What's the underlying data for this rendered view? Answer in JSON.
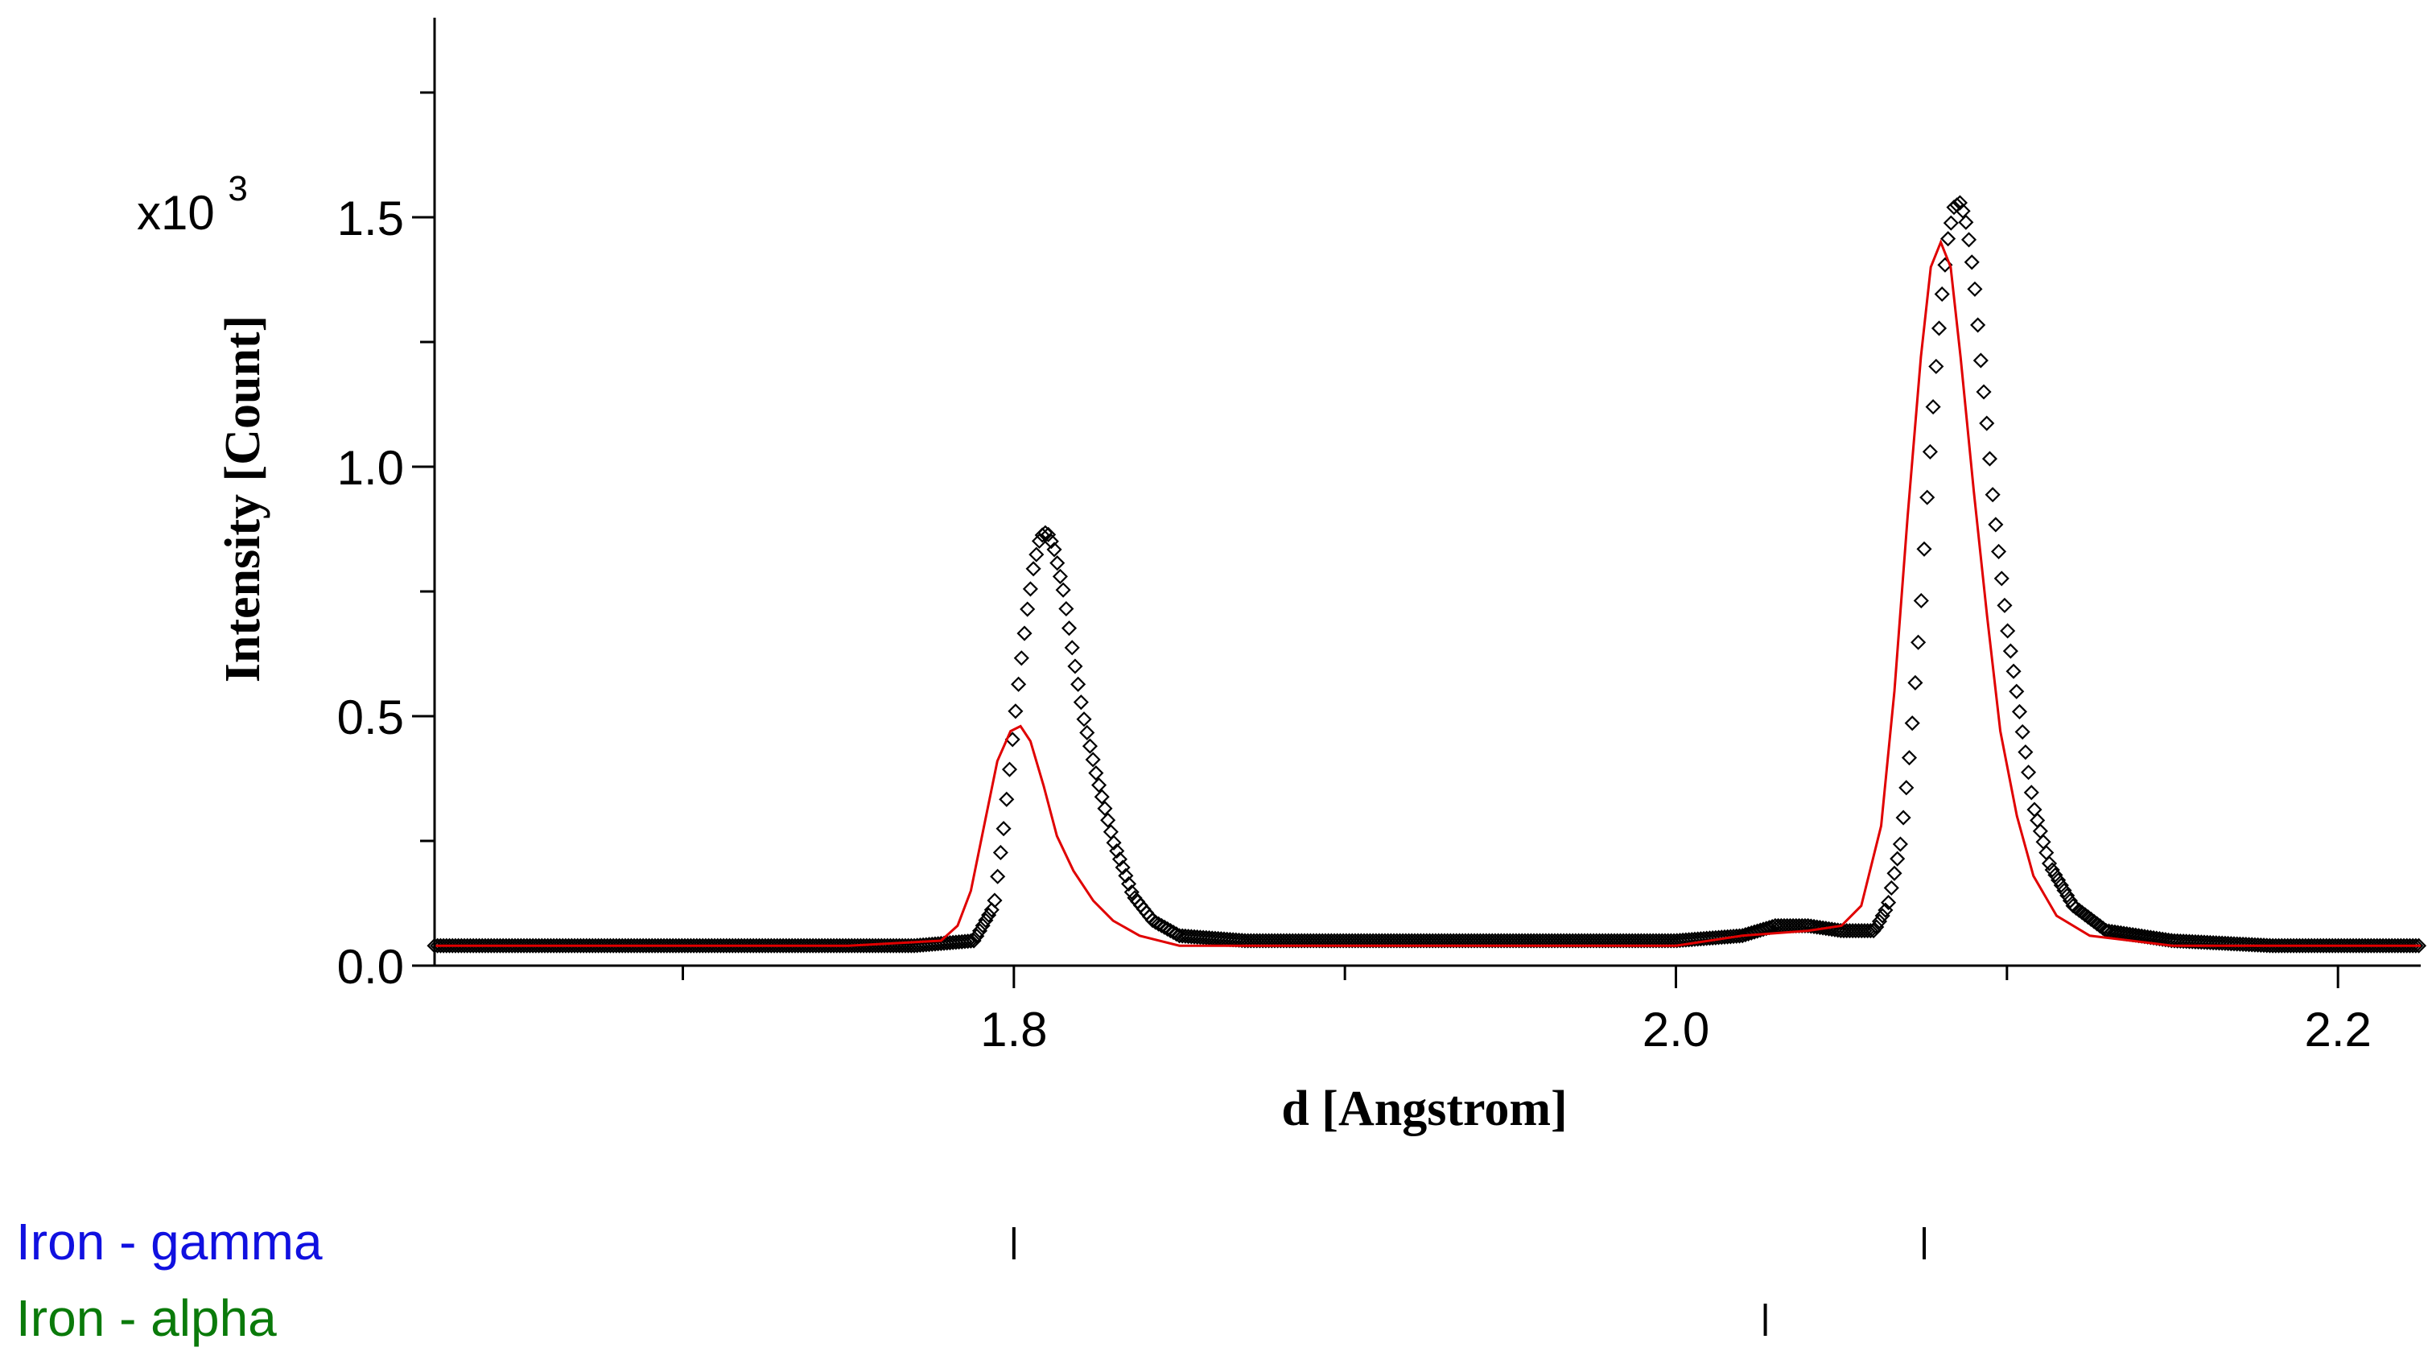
{
  "chart_data": {
    "type": "scatter",
    "xlabel": "d [Angstrom]",
    "ylabel": "Intensity [Count]",
    "y_multiplier": "x10",
    "y_multiplier_exp": "3",
    "xlim": [
      1.625,
      2.225
    ],
    "ylim": [
      0,
      1.9
    ],
    "x_ticks_major": [
      "1.8",
      "2.0",
      "2.2"
    ],
    "y_ticks_major": [
      "0.0",
      "0.5",
      "1.0",
      "1.5"
    ],
    "grid": false,
    "series": [
      {
        "kind": "observed",
        "marker": "diamond",
        "color": "#000000",
        "points": [
          [
            1.625,
            0.04
          ],
          [
            1.66,
            0.04
          ],
          [
            1.7,
            0.04
          ],
          [
            1.74,
            0.04
          ],
          [
            1.77,
            0.04
          ],
          [
            1.788,
            0.05
          ],
          [
            1.794,
            0.12
          ],
          [
            1.797,
            0.28
          ],
          [
            1.8,
            0.48
          ],
          [
            1.802,
            0.6
          ],
          [
            1.804,
            0.71
          ],
          [
            1.806,
            0.8
          ],
          [
            1.808,
            0.86
          ],
          [
            1.81,
            0.87
          ],
          [
            1.812,
            0.84
          ],
          [
            1.815,
            0.75
          ],
          [
            1.818,
            0.62
          ],
          [
            1.821,
            0.5
          ],
          [
            1.825,
            0.38
          ],
          [
            1.83,
            0.25
          ],
          [
            1.836,
            0.14
          ],
          [
            1.842,
            0.09
          ],
          [
            1.85,
            0.06
          ],
          [
            1.87,
            0.05
          ],
          [
            1.9,
            0.05
          ],
          [
            1.95,
            0.05
          ],
          [
            2.0,
            0.05
          ],
          [
            2.02,
            0.06
          ],
          [
            2.03,
            0.08
          ],
          [
            2.04,
            0.08
          ],
          [
            2.05,
            0.07
          ],
          [
            2.06,
            0.07
          ],
          [
            2.064,
            0.12
          ],
          [
            2.068,
            0.25
          ],
          [
            2.071,
            0.45
          ],
          [
            2.074,
            0.72
          ],
          [
            2.076,
            0.95
          ],
          [
            2.078,
            1.15
          ],
          [
            2.08,
            1.32
          ],
          [
            2.082,
            1.45
          ],
          [
            2.084,
            1.52
          ],
          [
            2.086,
            1.53
          ],
          [
            2.088,
            1.48
          ],
          [
            2.09,
            1.38
          ],
          [
            2.092,
            1.22
          ],
          [
            2.094,
            1.08
          ],
          [
            2.096,
            0.92
          ],
          [
            2.098,
            0.8
          ],
          [
            2.1,
            0.68
          ],
          [
            2.104,
            0.5
          ],
          [
            2.108,
            0.32
          ],
          [
            2.113,
            0.2
          ],
          [
            2.12,
            0.12
          ],
          [
            2.13,
            0.07
          ],
          [
            2.15,
            0.05
          ],
          [
            2.18,
            0.04
          ],
          [
            2.225,
            0.04
          ]
        ]
      },
      {
        "kind": "calculated",
        "color": "#e00000",
        "points": [
          [
            1.625,
            0.04
          ],
          [
            1.7,
            0.04
          ],
          [
            1.75,
            0.04
          ],
          [
            1.778,
            0.05
          ],
          [
            1.783,
            0.08
          ],
          [
            1.787,
            0.15
          ],
          [
            1.791,
            0.28
          ],
          [
            1.795,
            0.41
          ],
          [
            1.799,
            0.47
          ],
          [
            1.802,
            0.48
          ],
          [
            1.805,
            0.45
          ],
          [
            1.809,
            0.36
          ],
          [
            1.813,
            0.26
          ],
          [
            1.818,
            0.19
          ],
          [
            1.824,
            0.13
          ],
          [
            1.83,
            0.09
          ],
          [
            1.838,
            0.06
          ],
          [
            1.85,
            0.04
          ],
          [
            1.9,
            0.04
          ],
          [
            1.95,
            0.04
          ],
          [
            2.0,
            0.04
          ],
          [
            2.02,
            0.06
          ],
          [
            2.04,
            0.07
          ],
          [
            2.05,
            0.08
          ],
          [
            2.056,
            0.12
          ],
          [
            2.062,
            0.28
          ],
          [
            2.066,
            0.55
          ],
          [
            2.07,
            0.9
          ],
          [
            2.074,
            1.22
          ],
          [
            2.077,
            1.4
          ],
          [
            2.08,
            1.45
          ],
          [
            2.083,
            1.4
          ],
          [
            2.086,
            1.22
          ],
          [
            2.09,
            0.95
          ],
          [
            2.094,
            0.7
          ],
          [
            2.098,
            0.47
          ],
          [
            2.103,
            0.3
          ],
          [
            2.108,
            0.18
          ],
          [
            2.115,
            0.1
          ],
          [
            2.125,
            0.06
          ],
          [
            2.15,
            0.04
          ],
          [
            2.225,
            0.04
          ]
        ]
      }
    ],
    "phases": [
      {
        "name": "Iron - gamma",
        "color": "#1010e0",
        "reflections": [
          1.8,
          2.075
        ]
      },
      {
        "name": "Iron - alpha",
        "color": "#0a7a0a",
        "reflections": [
          2.027
        ]
      }
    ]
  }
}
